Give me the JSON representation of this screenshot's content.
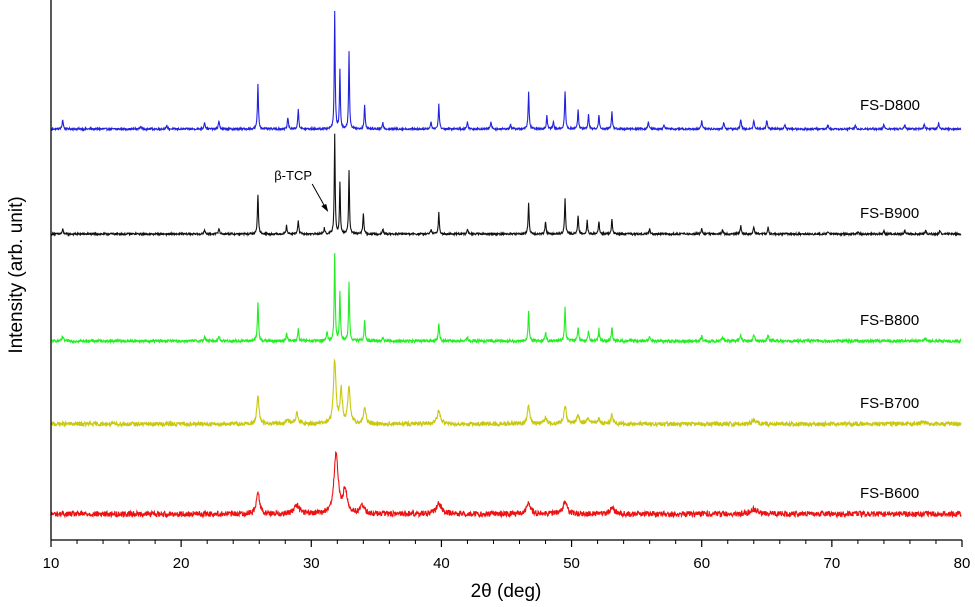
{
  "chart_data": {
    "type": "line",
    "xlabel": "2θ (deg)",
    "ylabel": "Intensity (arb. unit)",
    "xlim": [
      10,
      80
    ],
    "xticks": [
      10,
      20,
      30,
      40,
      50,
      60,
      70,
      80
    ],
    "y_ticks_shown": false,
    "grid": false,
    "legend": "none",
    "annotations": [
      {
        "text": "β-TCP",
        "x": 31.3,
        "series": "FS-B900"
      }
    ],
    "series": [
      {
        "name": "FS-D800",
        "color": "#2222dd",
        "baseline": 0.0,
        "noise": 0.004,
        "peaks": [
          [
            10.9,
            0.04,
            0.1
          ],
          [
            16.9,
            0.012,
            0.1
          ],
          [
            18.9,
            0.012,
            0.1
          ],
          [
            21.8,
            0.03,
            0.1
          ],
          [
            22.9,
            0.035,
            0.1
          ],
          [
            25.9,
            0.19,
            0.09
          ],
          [
            28.2,
            0.05,
            0.09
          ],
          [
            29.0,
            0.085,
            0.09
          ],
          [
            31.8,
            0.5,
            0.08
          ],
          [
            32.2,
            0.25,
            0.08
          ],
          [
            32.9,
            0.33,
            0.08
          ],
          [
            34.1,
            0.1,
            0.09
          ],
          [
            35.5,
            0.025,
            0.1
          ],
          [
            39.2,
            0.03,
            0.1
          ],
          [
            39.8,
            0.105,
            0.09
          ],
          [
            42.0,
            0.03,
            0.1
          ],
          [
            43.8,
            0.03,
            0.1
          ],
          [
            45.3,
            0.02,
            0.1
          ],
          [
            46.7,
            0.155,
            0.09
          ],
          [
            48.1,
            0.058,
            0.09
          ],
          [
            48.6,
            0.03,
            0.1
          ],
          [
            49.5,
            0.16,
            0.09
          ],
          [
            50.5,
            0.082,
            0.09
          ],
          [
            51.3,
            0.062,
            0.09
          ],
          [
            52.1,
            0.06,
            0.09
          ],
          [
            53.1,
            0.075,
            0.09
          ],
          [
            55.9,
            0.03,
            0.1
          ],
          [
            57.1,
            0.02,
            0.1
          ],
          [
            60.0,
            0.035,
            0.1
          ],
          [
            61.7,
            0.028,
            0.1
          ],
          [
            63.0,
            0.042,
            0.1
          ],
          [
            64.0,
            0.035,
            0.1
          ],
          [
            65.0,
            0.038,
            0.1
          ],
          [
            66.4,
            0.02,
            0.1
          ],
          [
            69.7,
            0.016,
            0.1
          ],
          [
            71.8,
            0.018,
            0.1
          ],
          [
            74.0,
            0.02,
            0.1
          ],
          [
            75.6,
            0.02,
            0.1
          ],
          [
            77.1,
            0.022,
            0.1
          ],
          [
            78.2,
            0.025,
            0.1
          ]
        ]
      },
      {
        "name": "FS-B900",
        "color": "#111111",
        "baseline": 0.0,
        "noise": 0.004,
        "peaks": [
          [
            10.9,
            0.02,
            0.1
          ],
          [
            21.8,
            0.018,
            0.1
          ],
          [
            22.9,
            0.025,
            0.1
          ],
          [
            25.9,
            0.17,
            0.09
          ],
          [
            28.1,
            0.035,
            0.1
          ],
          [
            29.0,
            0.06,
            0.09
          ],
          [
            31.0,
            0.025,
            0.09
          ],
          [
            31.8,
            0.42,
            0.08
          ],
          [
            32.2,
            0.22,
            0.08
          ],
          [
            32.9,
            0.27,
            0.08
          ],
          [
            34.0,
            0.09,
            0.09
          ],
          [
            35.5,
            0.018,
            0.1
          ],
          [
            39.2,
            0.018,
            0.1
          ],
          [
            39.8,
            0.09,
            0.09
          ],
          [
            42.0,
            0.02,
            0.1
          ],
          [
            46.7,
            0.13,
            0.09
          ],
          [
            48.0,
            0.055,
            0.09
          ],
          [
            49.5,
            0.15,
            0.09
          ],
          [
            50.5,
            0.078,
            0.09
          ],
          [
            51.2,
            0.058,
            0.09
          ],
          [
            52.1,
            0.055,
            0.09
          ],
          [
            53.1,
            0.065,
            0.09
          ],
          [
            56.0,
            0.022,
            0.1
          ],
          [
            60.0,
            0.022,
            0.1
          ],
          [
            61.6,
            0.018,
            0.1
          ],
          [
            63.0,
            0.034,
            0.1
          ],
          [
            64.0,
            0.03,
            0.1
          ],
          [
            65.1,
            0.028,
            0.1
          ],
          [
            69.7,
            0.01,
            0.1
          ],
          [
            72.0,
            0.01,
            0.1
          ],
          [
            74.0,
            0.012,
            0.1
          ],
          [
            75.6,
            0.012,
            0.1
          ],
          [
            77.2,
            0.016,
            0.1
          ],
          [
            78.3,
            0.016,
            0.1
          ]
        ]
      },
      {
        "name": "FS-B800",
        "color": "#22ee22",
        "baseline": 0.0,
        "noise": 0.006,
        "peaks": [
          [
            10.9,
            0.018,
            0.12
          ],
          [
            21.8,
            0.018,
            0.12
          ],
          [
            22.9,
            0.02,
            0.12
          ],
          [
            25.9,
            0.165,
            0.1
          ],
          [
            28.1,
            0.03,
            0.12
          ],
          [
            29.0,
            0.05,
            0.1
          ],
          [
            31.2,
            0.04,
            0.1
          ],
          [
            31.8,
            0.37,
            0.09
          ],
          [
            32.2,
            0.205,
            0.09
          ],
          [
            32.9,
            0.25,
            0.09
          ],
          [
            34.1,
            0.085,
            0.1
          ],
          [
            35.5,
            0.015,
            0.12
          ],
          [
            39.8,
            0.08,
            0.1
          ],
          [
            42.0,
            0.015,
            0.12
          ],
          [
            46.7,
            0.125,
            0.1
          ],
          [
            48.0,
            0.04,
            0.1
          ],
          [
            49.5,
            0.14,
            0.1
          ],
          [
            50.5,
            0.06,
            0.1
          ],
          [
            51.3,
            0.045,
            0.1
          ],
          [
            52.1,
            0.05,
            0.1
          ],
          [
            53.1,
            0.06,
            0.1
          ],
          [
            56.0,
            0.015,
            0.12
          ],
          [
            60.0,
            0.02,
            0.12
          ],
          [
            61.6,
            0.015,
            0.12
          ],
          [
            63.0,
            0.025,
            0.12
          ],
          [
            64.0,
            0.028,
            0.12
          ],
          [
            65.1,
            0.025,
            0.12
          ],
          [
            77.2,
            0.01,
            0.12
          ]
        ]
      },
      {
        "name": "FS-B700",
        "color": "#c8c810",
        "baseline": 0.0,
        "noise": 0.009,
        "peaks": [
          [
            25.9,
            0.115,
            0.2
          ],
          [
            28.2,
            0.02,
            0.25
          ],
          [
            28.9,
            0.045,
            0.22
          ],
          [
            31.8,
            0.27,
            0.22
          ],
          [
            32.3,
            0.14,
            0.2
          ],
          [
            32.9,
            0.15,
            0.22
          ],
          [
            34.1,
            0.065,
            0.22
          ],
          [
            39.8,
            0.055,
            0.3
          ],
          [
            46.7,
            0.08,
            0.22
          ],
          [
            48.0,
            0.025,
            0.25
          ],
          [
            49.5,
            0.08,
            0.22
          ],
          [
            50.5,
            0.035,
            0.25
          ],
          [
            51.3,
            0.022,
            0.25
          ],
          [
            52.1,
            0.02,
            0.25
          ],
          [
            53.1,
            0.035,
            0.22
          ],
          [
            64.0,
            0.015,
            0.4
          ],
          [
            77.0,
            0.008,
            0.6
          ]
        ]
      },
      {
        "name": "FS-B600",
        "color": "#ee1111",
        "baseline": 0.0,
        "noise": 0.012,
        "peaks": [
          [
            25.9,
            0.1,
            0.28
          ],
          [
            28.9,
            0.035,
            0.5
          ],
          [
            31.9,
            0.25,
            0.38
          ],
          [
            32.6,
            0.1,
            0.35
          ],
          [
            33.9,
            0.035,
            0.4
          ],
          [
            39.8,
            0.045,
            0.5
          ],
          [
            46.7,
            0.045,
            0.35
          ],
          [
            49.5,
            0.05,
            0.38
          ],
          [
            53.1,
            0.025,
            0.4
          ],
          [
            64.0,
            0.02,
            0.6
          ]
        ]
      }
    ],
    "series_offsets": [
      0.0,
      0.0,
      0.0,
      0.0,
      0.0
    ]
  }
}
